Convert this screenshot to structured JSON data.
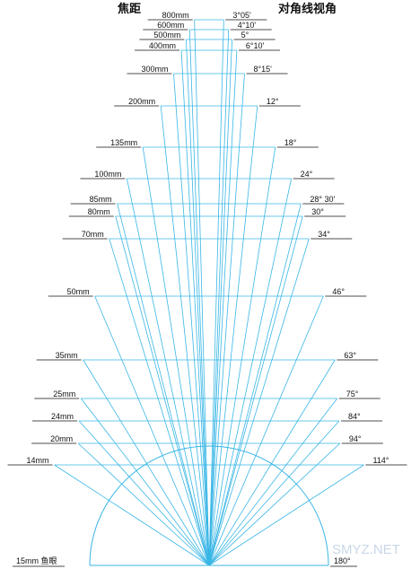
{
  "header": {
    "focal_title": "焦距",
    "angle_title": "对角线视角"
  },
  "colors": {
    "ray": "#39b6e6",
    "bar": "#39b6e6",
    "underline": "#111111"
  },
  "fisheye": {
    "focal": "15mm 鱼眼",
    "angle": "180°"
  },
  "lenses": [
    {
      "focal": "800mm",
      "angle": "3°05'",
      "deg": 3.08
    },
    {
      "focal": "600mm",
      "angle": "4°10'",
      "deg": 4.17
    },
    {
      "focal": "500mm",
      "angle": "5°",
      "deg": 5
    },
    {
      "focal": "400mm",
      "angle": "6°10'",
      "deg": 6.17
    },
    {
      "focal": "300mm",
      "angle": "8°15'",
      "deg": 8.25
    },
    {
      "focal": "200mm",
      "angle": "12°",
      "deg": 12
    },
    {
      "focal": "135mm",
      "angle": "18°",
      "deg": 18
    },
    {
      "focal": "100mm",
      "angle": "24°",
      "deg": 24
    },
    {
      "focal": "85mm",
      "angle": "28° 30'",
      "deg": 28.5
    },
    {
      "focal": "80mm",
      "angle": "30°",
      "deg": 30
    },
    {
      "focal": "70mm",
      "angle": "34°",
      "deg": 34
    },
    {
      "focal": "50mm",
      "angle": "46°",
      "deg": 46
    },
    {
      "focal": "35mm",
      "angle": "63°",
      "deg": 63
    },
    {
      "focal": "25mm",
      "angle": "75°",
      "deg": 75
    },
    {
      "focal": "24mm",
      "angle": "84°",
      "deg": 84
    },
    {
      "focal": "20mm",
      "angle": "94°",
      "deg": 94
    },
    {
      "focal": "14mm",
      "angle": "114°",
      "deg": 114
    }
  ],
  "watermark": "SMYZ.NET"
}
